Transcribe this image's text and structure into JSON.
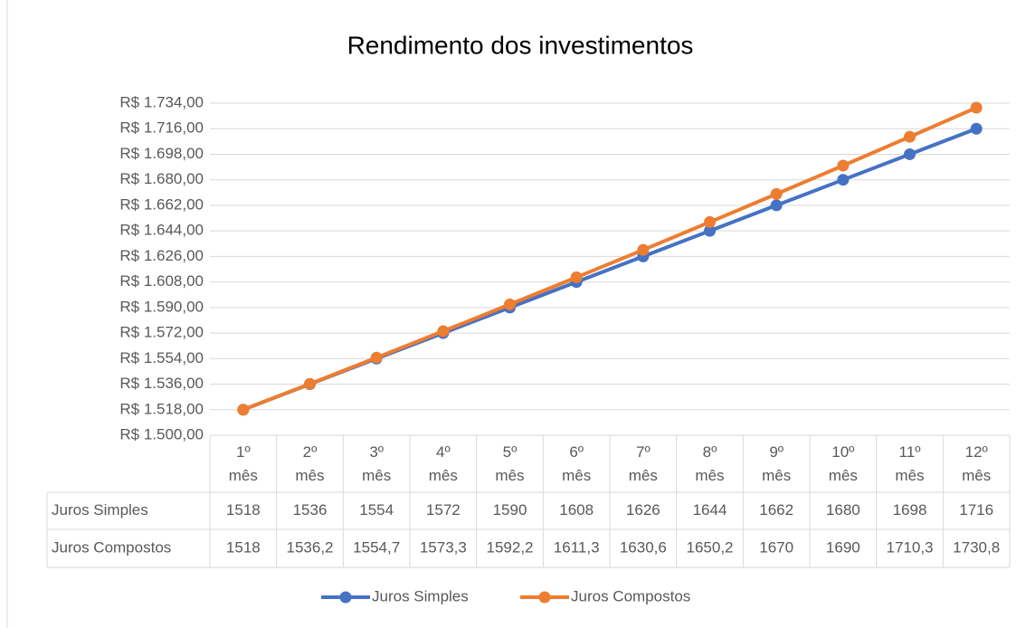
{
  "chart_data": {
    "type": "line",
    "title": "Rendimento dos investimentos",
    "categories": [
      "1º mês",
      "2º mês",
      "3º mês",
      "4º mês",
      "5º mês",
      "6º mês",
      "7º mês",
      "8º mês",
      "9º mês",
      "10º mês",
      "11º mês",
      "12º mês"
    ],
    "series": [
      {
        "name": "Juros Simples",
        "color": "#4472c4",
        "values": [
          1518,
          1536,
          1554,
          1572,
          1590,
          1608,
          1626,
          1644,
          1662,
          1680,
          1698,
          1716
        ]
      },
      {
        "name": "Juros Compostos",
        "color": "#ed7d31",
        "values": [
          1518,
          1536.2,
          1554.7,
          1573.3,
          1592.2,
          1611.3,
          1630.6,
          1650.2,
          1670,
          1690,
          1710.3,
          1730.8
        ],
        "value_labels": [
          "1518",
          "1536,2",
          "1554,7",
          "1573,3",
          "1592,2",
          "1611,3",
          "1630,6",
          "1650,2",
          "1670",
          "1690",
          "1710,3",
          "1730,8"
        ]
      }
    ],
    "ylim": [
      1500,
      1734
    ],
    "yticks": [
      {
        "value": 1500,
        "label": "R$ 1.500,00"
      },
      {
        "value": 1518,
        "label": "R$ 1.518,00"
      },
      {
        "value": 1536,
        "label": "R$ 1.536,00"
      },
      {
        "value": 1554,
        "label": "R$ 1.554,00"
      },
      {
        "value": 1572,
        "label": "R$ 1.572,00"
      },
      {
        "value": 1590,
        "label": "R$ 1.590,00"
      },
      {
        "value": 1608,
        "label": "R$ 1.608,00"
      },
      {
        "value": 1626,
        "label": "R$ 1.626,00"
      },
      {
        "value": 1644,
        "label": "R$ 1.644,00"
      },
      {
        "value": 1662,
        "label": "R$ 1.662,00"
      },
      {
        "value": 1680,
        "label": "R$ 1.680,00"
      },
      {
        "value": 1698,
        "label": "R$ 1.698,00"
      },
      {
        "value": 1716,
        "label": "R$ 1.716,00"
      },
      {
        "value": 1734,
        "label": "R$ 1.734,00"
      }
    ],
    "grid": true,
    "legend": "bottom"
  }
}
